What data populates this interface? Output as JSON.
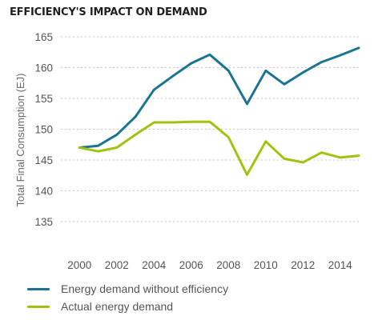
{
  "chart_data": {
    "type": "line",
    "title": "EFFICIENCY'S IMPACT ON DEMAND",
    "ylabel": "Total Final Consumption (EJ)",
    "xlabel": "",
    "x": [
      2000,
      2001,
      2002,
      2003,
      2004,
      2005,
      2006,
      2007,
      2008,
      2009,
      2010,
      2011,
      2012,
      2013,
      2014,
      2015
    ],
    "xticks": [
      "2000",
      "2002",
      "2004",
      "2006",
      "2008",
      "2010",
      "2012",
      "2014"
    ],
    "yticks": [
      "135",
      "140",
      "145",
      "150",
      "155",
      "160",
      "165"
    ],
    "ylim": [
      132,
      165
    ],
    "xlim": [
      1999,
      2015
    ],
    "grid": "horizontal dashed",
    "legend_position": "bottom",
    "series": [
      {
        "name": "Energy demand without efficiency",
        "color": "#1a7591",
        "values": [
          147.0,
          147.3,
          149.1,
          152.0,
          156.4,
          158.6,
          160.7,
          162.1,
          159.5,
          154.1,
          159.5,
          157.3,
          159.2,
          160.9,
          162.0,
          163.2
        ]
      },
      {
        "name": "Actual energy demand",
        "color": "#a2c20f",
        "values": [
          147.0,
          146.4,
          147.0,
          149.1,
          151.1,
          151.1,
          151.2,
          151.2,
          148.7,
          142.6,
          148.0,
          145.2,
          144.6,
          146.2,
          145.4,
          145.7
        ]
      }
    ]
  }
}
